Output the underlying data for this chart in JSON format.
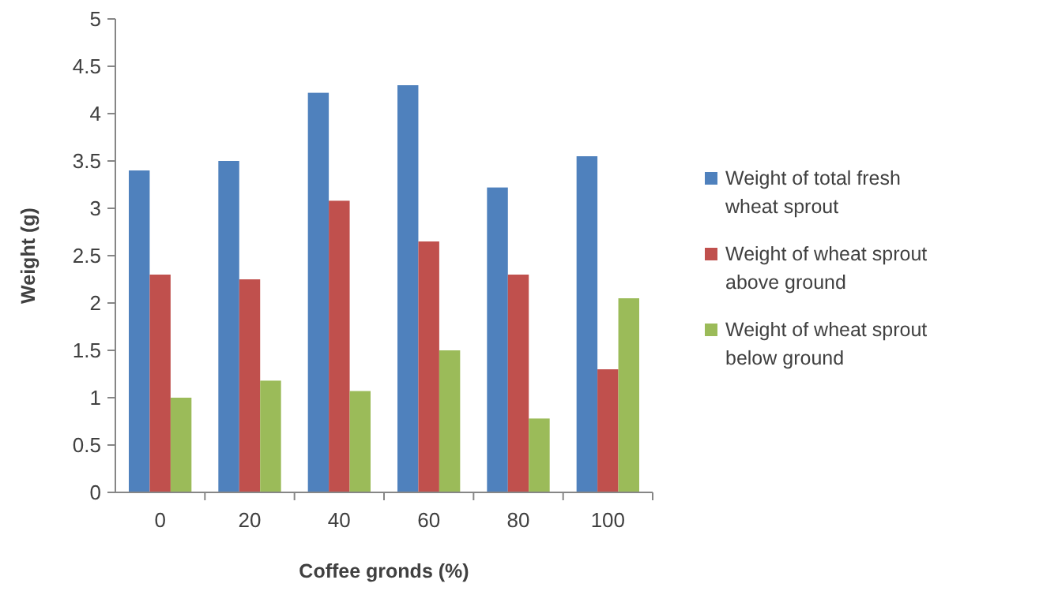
{
  "chart_data": {
    "type": "bar",
    "xlabel": "Coffee gronds (%)",
    "ylabel": "Weight (g)",
    "categories": [
      "0",
      "20",
      "40",
      "60",
      "80",
      "100"
    ],
    "series": [
      {
        "name": "Weight of total fresh wheat sprout",
        "color": "#4f81bd",
        "values": [
          3.4,
          3.5,
          4.22,
          4.3,
          3.22,
          3.55
        ]
      },
      {
        "name": "Weight of wheat sprout above ground",
        "color": "#c0504d",
        "values": [
          2.3,
          2.25,
          3.08,
          2.65,
          2.3,
          1.3
        ]
      },
      {
        "name": "Weight of wheat sprout below ground",
        "color": "#9bbb59",
        "values": [
          1.0,
          1.18,
          1.07,
          1.5,
          0.78,
          2.05
        ]
      }
    ],
    "ylim": [
      0,
      5
    ],
    "yticks": [
      0,
      0.5,
      1,
      1.5,
      2,
      2.5,
      3,
      3.5,
      4,
      4.5,
      5
    ],
    "grid": false,
    "legend": "right"
  }
}
